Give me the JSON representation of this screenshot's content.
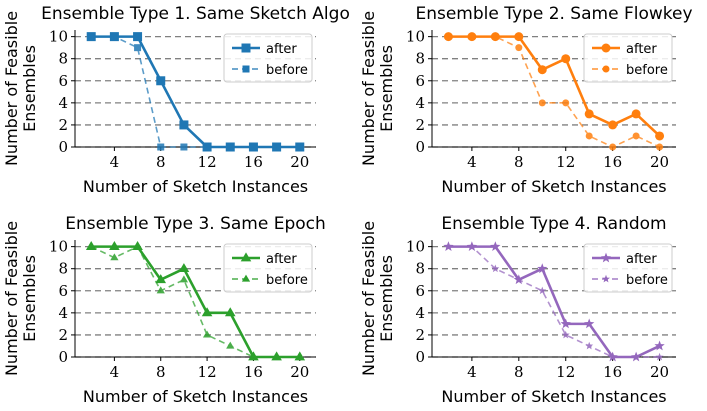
{
  "chart_data": [
    {
      "type": "line",
      "title": "Ensemble Type 1. Same Sketch Algo",
      "xlabel": "Number of Sketch Instances",
      "ylabel": "Number of Feasible Ensembles",
      "ylabel_lines": [
        "Number of Feasible",
        "Ensembles"
      ],
      "x": [
        2,
        4,
        6,
        8,
        10,
        12,
        14,
        16,
        18,
        20
      ],
      "xticks": [
        4,
        8,
        12,
        16,
        20
      ],
      "yticks": [
        0,
        2,
        4,
        6,
        8,
        10
      ],
      "xlim": [
        0.6,
        21.4
      ],
      "ylim": [
        0,
        10.6
      ],
      "grid": "horizontal dashed",
      "legend_position": "top-right",
      "marker": "square",
      "color": "#1f77b4",
      "series": [
        {
          "name": "after",
          "style": "solid",
          "values": [
            10,
            10,
            10,
            6,
            2,
            0,
            0,
            0,
            0,
            0
          ]
        },
        {
          "name": "before",
          "style": "dashed",
          "values": [
            10,
            10,
            9,
            0,
            0,
            0,
            0,
            0,
            0,
            0
          ]
        }
      ]
    },
    {
      "type": "line",
      "title": "Ensemble Type 2. Same Flowkey",
      "xlabel": "Number of Sketch Instances",
      "ylabel": "Number of Feasible Ensembles",
      "ylabel_lines": [
        "Number of Feasible",
        "Ensembles"
      ],
      "x": [
        2,
        4,
        6,
        8,
        10,
        12,
        14,
        16,
        18,
        20
      ],
      "xticks": [
        4,
        8,
        12,
        16,
        20
      ],
      "yticks": [
        0,
        2,
        4,
        6,
        8,
        10
      ],
      "xlim": [
        0.6,
        21.4
      ],
      "ylim": [
        0,
        10.6
      ],
      "grid": "horizontal dashed",
      "legend_position": "top-right",
      "marker": "circle",
      "color": "#ff7f0e",
      "series": [
        {
          "name": "after",
          "style": "solid",
          "values": [
            10,
            10,
            10,
            10,
            7,
            8,
            3,
            2,
            3,
            1
          ]
        },
        {
          "name": "before",
          "style": "dashed",
          "values": [
            10,
            10,
            10,
            9,
            4,
            4,
            1,
            0,
            1,
            0
          ]
        }
      ]
    },
    {
      "type": "line",
      "title": "Ensemble Type 3. Same Epoch",
      "xlabel": "Number of Sketch Instances",
      "ylabel": "Number of Feasible Ensembles",
      "ylabel_lines": [
        "Number of Feasible",
        "Ensembles"
      ],
      "x": [
        2,
        4,
        6,
        8,
        10,
        12,
        14,
        16,
        18,
        20
      ],
      "xticks": [
        4,
        8,
        12,
        16,
        20
      ],
      "yticks": [
        0,
        2,
        4,
        6,
        8,
        10
      ],
      "xlim": [
        0.6,
        21.4
      ],
      "ylim": [
        0,
        10.6
      ],
      "grid": "horizontal dashed",
      "legend_position": "top-right",
      "marker": "triangle",
      "color": "#2ca02c",
      "series": [
        {
          "name": "after",
          "style": "solid",
          "values": [
            10,
            10,
            10,
            7,
            8,
            4,
            4,
            0,
            0,
            0
          ]
        },
        {
          "name": "before",
          "style": "dashed",
          "values": [
            10,
            9,
            10,
            6,
            7,
            2,
            1,
            0,
            0,
            0
          ]
        }
      ]
    },
    {
      "type": "line",
      "title": "Ensemble Type 4. Random",
      "xlabel": "Number of Sketch Instances",
      "ylabel": "Number of Feasible Ensembles",
      "ylabel_lines": [
        "Number of Feasible",
        "Ensembles"
      ],
      "x": [
        2,
        4,
        6,
        8,
        10,
        12,
        14,
        16,
        18,
        20
      ],
      "xticks": [
        4,
        8,
        12,
        16,
        20
      ],
      "yticks": [
        0,
        2,
        4,
        6,
        8,
        10
      ],
      "xlim": [
        0.6,
        21.4
      ],
      "ylim": [
        0,
        10.6
      ],
      "grid": "horizontal dashed",
      "legend_position": "top-right",
      "marker": "star",
      "color": "#9467bd",
      "series": [
        {
          "name": "after",
          "style": "solid",
          "values": [
            10,
            10,
            10,
            7,
            8,
            3,
            3,
            0,
            0,
            1
          ]
        },
        {
          "name": "before",
          "style": "dashed",
          "values": [
            10,
            10,
            8,
            7,
            6,
            2,
            1,
            0,
            0,
            0
          ]
        }
      ]
    }
  ]
}
